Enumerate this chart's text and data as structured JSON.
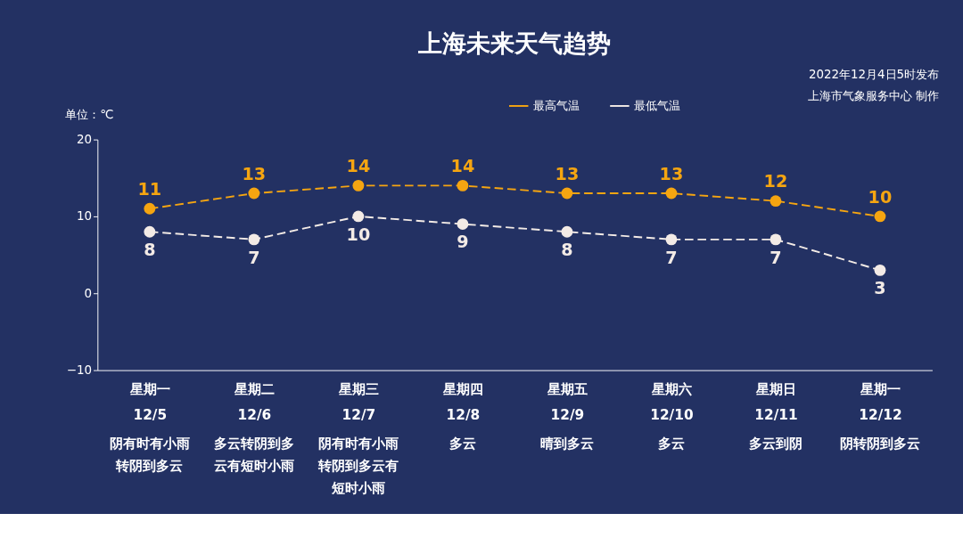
{
  "chart_data": {
    "type": "line",
    "title": "上海未来天气趋势",
    "ylabel": "单位：℃",
    "categories": [
      "星期一\n12/5",
      "星期二\n12/6",
      "星期三\n12/7",
      "星期四\n12/8",
      "星期五\n12/9",
      "星期六\n12/10",
      "星期日\n12/11",
      "星期一\n12/12"
    ],
    "series": [
      {
        "name": "最高气温",
        "color": "#f5a511",
        "values": [
          11,
          13,
          14,
          14,
          13,
          13,
          12,
          10
        ]
      },
      {
        "name": "最低气温",
        "color": "#f3ebe6",
        "values": [
          8,
          7,
          10,
          9,
          8,
          7,
          7,
          3
        ]
      }
    ],
    "ylim": [
      -10,
      20
    ],
    "yticks": [
      -10,
      0,
      10,
      20
    ],
    "grid": false,
    "legend": "top",
    "marker": "circle",
    "line_style": "dashed",
    "data_labels": true,
    "annotations": [
      "2022年12月4日5时发布",
      "上海市气象服务中心 制作",
      "阴有时有小雨转阴到多云",
      "多云转阴到多云有短时小雨",
      "阴有时有小雨转阴到多云有短时小雨",
      "多云",
      "晴到多云",
      "多云",
      "多云到阴",
      "阴转阴到多云"
    ]
  }
}
